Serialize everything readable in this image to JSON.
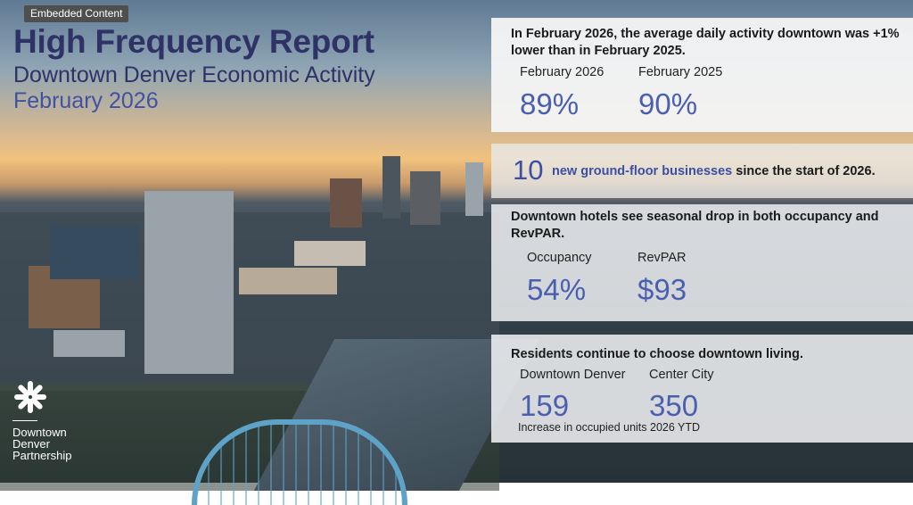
{
  "embedded_label": "Embedded Content",
  "report": {
    "title": "High Frequency Report",
    "subtitle": "Downtown Denver Economic Activity",
    "month": "February 2026"
  },
  "activity": {
    "headline": "In February 2026, the average daily activity downtown was +1% lower than in February 2025.",
    "col1_label": "February 2026",
    "col1_value": "89%",
    "col2_label": "February 2025",
    "col2_value": "90%"
  },
  "businesses": {
    "count": "10",
    "highlight": "new ground-floor businesses",
    "suffix": "since the start of 2026."
  },
  "hotels": {
    "headline": "Downtown hotels see seasonal drop in both occupancy and RevPAR.",
    "col1_label": "Occupancy",
    "col1_value": "54%",
    "col2_label": "RevPAR",
    "col2_value": "$93"
  },
  "residents": {
    "headline": "Residents continue to choose downtown living.",
    "col1_label": "Downtown Denver",
    "col1_value": "159",
    "col2_label": "Center City",
    "col2_value": "350",
    "note": "Increase in occupied units 2026 YTD"
  },
  "logo": {
    "line1": "Downtown",
    "line2": "Denver",
    "line3": "Partnership"
  }
}
